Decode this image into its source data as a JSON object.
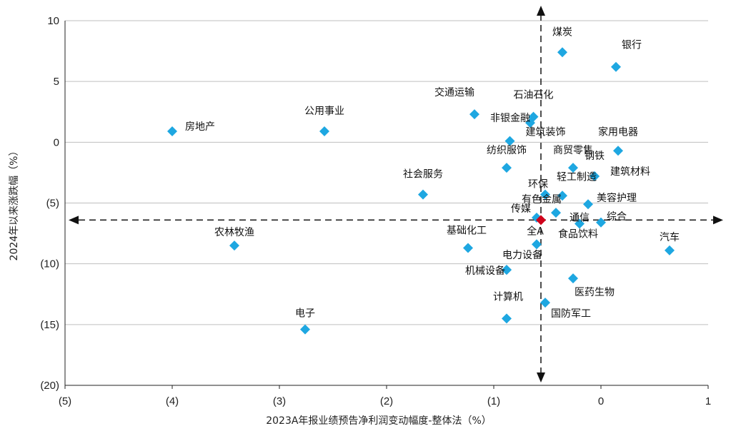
{
  "chart_data": {
    "type": "scatter",
    "xlabel": "2023A年报业绩预告净利润变动幅度-整体法（%）",
    "ylabel": "2024年以来涨跌幅（%）",
    "xlim": [
      -5,
      1
    ],
    "ylim": [
      -20,
      10
    ],
    "x_ticks": [
      -5,
      -4,
      -3,
      -2,
      -1,
      0,
      1
    ],
    "x_tick_labels": [
      "(5)",
      "(4)",
      "(3)",
      "(2)",
      "(1)",
      "0",
      "1"
    ],
    "y_ticks": [
      10,
      5,
      0,
      -5,
      -10,
      -15,
      -20
    ],
    "y_tick_labels": [
      "10",
      "5",
      "0",
      "(5)",
      "(10)",
      "(15)",
      "(20)"
    ],
    "grid": "horizontal",
    "colors": {
      "point": "#1ea7e1",
      "highlight": "#d0021b",
      "grid": "#bfbfbf",
      "axis": "#222222"
    },
    "crosshair": {
      "x": -0.56,
      "y": -6.4
    },
    "points": [
      {
        "name": "煤炭",
        "x": -0.36,
        "y": 7.4
      },
      {
        "name": "银行",
        "x": 0.14,
        "y": 6.2
      },
      {
        "name": "交通运输",
        "x": -1.18,
        "y": 2.3
      },
      {
        "name": "石油石化",
        "x": -0.63,
        "y": 2.1
      },
      {
        "name": "房地产",
        "x": -4.0,
        "y": 0.9
      },
      {
        "name": "公用事业",
        "x": -2.58,
        "y": 0.9
      },
      {
        "name": "非银金融",
        "x": -0.66,
        "y": 1.6
      },
      {
        "name": "建筑装饰",
        "x": -0.85,
        "y": 0.1
      },
      {
        "name": "家用电器",
        "x": 0.16,
        "y": -0.7
      },
      {
        "name": "纺织服饰",
        "x": -0.88,
        "y": -2.1
      },
      {
        "name": "商贸零售",
        "x": -0.26,
        "y": -2.1
      },
      {
        "name": "社会服务",
        "x": -1.66,
        "y": -4.3
      },
      {
        "name": "钢铁",
        "x": -0.06,
        "y": -2.8
      },
      {
        "name": "建筑材料",
        "x": -0.06,
        "y": -2.8
      },
      {
        "name": "环保",
        "x": -0.52,
        "y": -4.3
      },
      {
        "name": "轻工制造",
        "x": -0.36,
        "y": -4.4
      },
      {
        "name": "美容护理",
        "x": -0.12,
        "y": -5.1
      },
      {
        "name": "有色金属",
        "x": -0.42,
        "y": -5.8
      },
      {
        "name": "传媒",
        "x": -0.6,
        "y": -6.2
      },
      {
        "name": "通信",
        "x": -0.2,
        "y": -6.7
      },
      {
        "name": "综合",
        "x": 0.0,
        "y": -6.6
      },
      {
        "name": "全A",
        "x": -0.56,
        "y": -6.4,
        "highlight": true
      },
      {
        "name": "食品饮料",
        "x": -0.6,
        "y": -8.4
      },
      {
        "name": "基础化工",
        "x": -1.24,
        "y": -8.7
      },
      {
        "name": "农林牧渔",
        "x": -3.42,
        "y": -8.5
      },
      {
        "name": "汽车",
        "x": 0.64,
        "y": -8.9
      },
      {
        "name": "电力设备",
        "x": -0.88,
        "y": -10.5
      },
      {
        "name": "机械设备",
        "x": -0.88,
        "y": -10.5
      },
      {
        "name": "医药生物",
        "x": -0.26,
        "y": -11.2
      },
      {
        "name": "计算机",
        "x": -0.88,
        "y": -14.5
      },
      {
        "name": "国防军工",
        "x": -0.52,
        "y": -13.2
      },
      {
        "name": "电子",
        "x": -2.76,
        "y": -15.4
      }
    ]
  }
}
